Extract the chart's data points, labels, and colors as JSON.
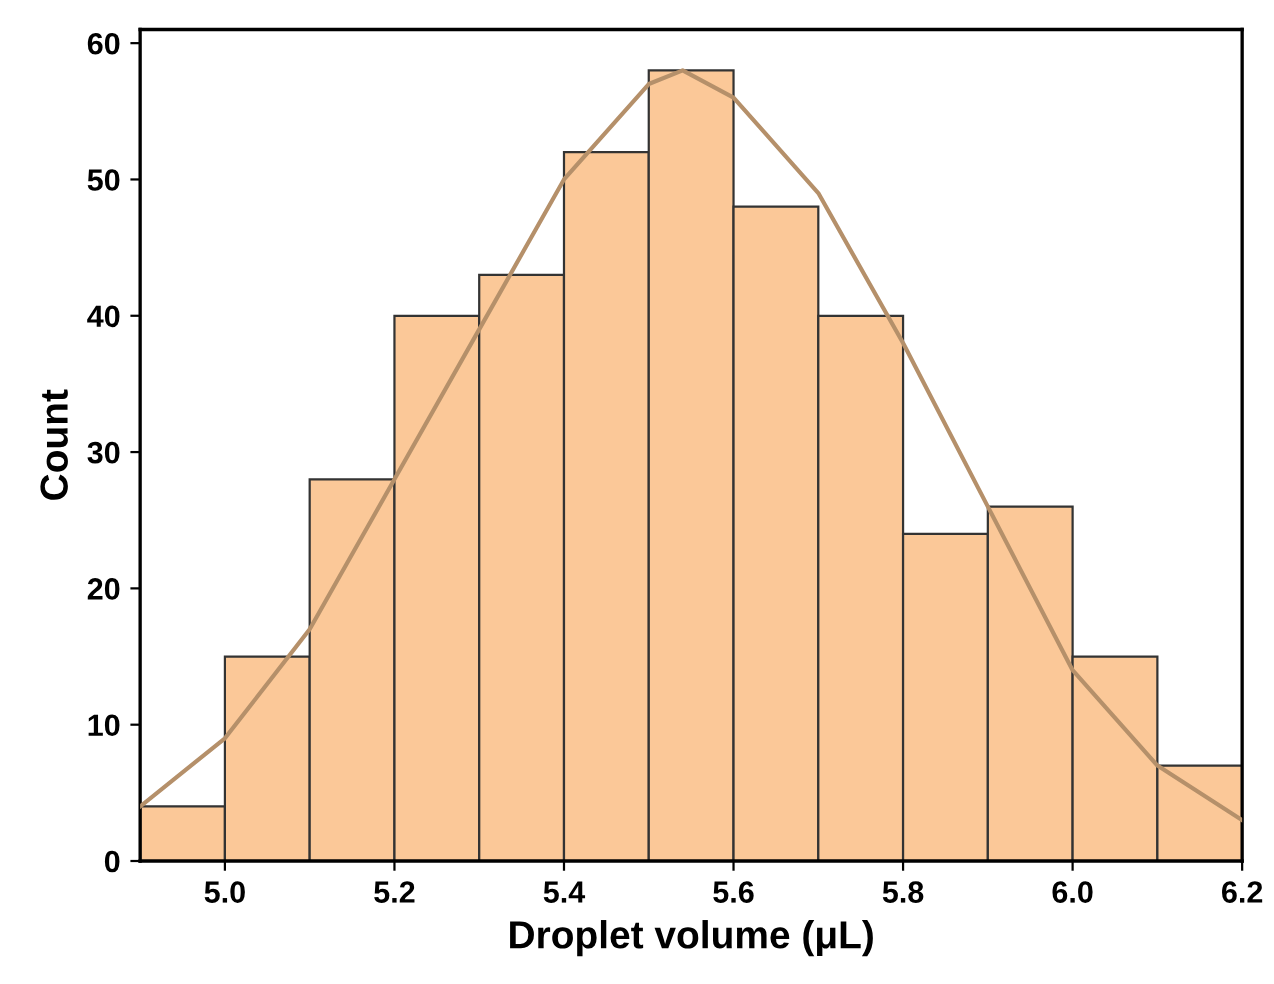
{
  "chart_data": {
    "type": "histogram",
    "xlabel": "Droplet volume (μL)",
    "ylabel": "Count",
    "bins": [
      4.9,
      5.0,
      5.1,
      5.2,
      5.3,
      5.4,
      5.5,
      5.6,
      5.7,
      5.8,
      5.9,
      6.0,
      6.1,
      6.2
    ],
    "values": [
      4,
      15,
      28,
      40,
      43,
      52,
      58,
      48,
      40,
      24,
      26,
      15,
      7
    ],
    "color": "#fbc898",
    "series": [
      {
        "type": "line",
        "color": "#b5906a",
        "x": [
          4.9,
          5.0,
          5.1,
          5.2,
          5.3,
          5.4,
          5.5,
          5.54,
          5.6,
          5.7,
          5.8,
          5.9,
          6.0,
          6.1,
          6.2
        ],
        "values": [
          4,
          9,
          17,
          28,
          39,
          50,
          57,
          58,
          56,
          49,
          38,
          26,
          14,
          7,
          3
        ]
      }
    ],
    "xlim": [
      4.9,
      6.2
    ],
    "xticks": [
      {
        "value": 5.0,
        "label": "5.0"
      },
      {
        "value": 5.2,
        "label": "5.2"
      },
      {
        "value": 5.4,
        "label": "5.4"
      },
      {
        "value": 5.6,
        "label": "5.6"
      },
      {
        "value": 5.8,
        "label": "5.8"
      },
      {
        "value": 6.0,
        "label": "6.0"
      },
      {
        "value": 6.2,
        "label": "6.2"
      }
    ],
    "ylim": [
      0,
      61
    ],
    "yticks": [
      0,
      10,
      20,
      30,
      40,
      50,
      60
    ],
    "grid": false,
    "legend": false
  }
}
